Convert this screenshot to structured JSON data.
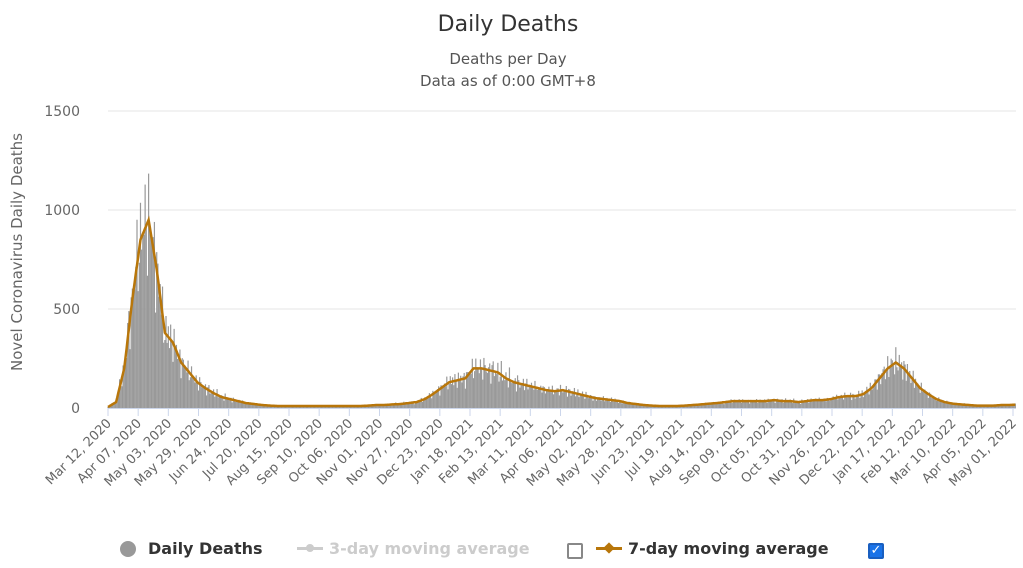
{
  "chart_data": {
    "type": "bar",
    "title": "Daily Deaths",
    "subtitle": "Deaths per Day",
    "subtitle2": "Data as of 0:00 GMT+8",
    "ylabel": "Novel Coronavirus Daily Deaths",
    "xlabel": "",
    "ylim": [
      0,
      1500
    ],
    "yticks": [
      "0",
      "500",
      "1000",
      "1500"
    ],
    "ytick_values": [
      0,
      500,
      1000,
      1500
    ],
    "x_start": "Mar 12, 2020",
    "x_tick_step_days": 26,
    "xticks": [
      "Mar 12, 2020",
      "Apr 07, 2020",
      "May 03, 2020",
      "May 29, 2020",
      "Jun 24, 2020",
      "Jul 20, 2020",
      "Aug 15, 2020",
      "Sep 10, 2020",
      "Oct 06, 2020",
      "Nov 01, 2020",
      "Nov 27, 2020",
      "Dec 23, 2020",
      "Jan 18, 2021",
      "Feb 13, 2021",
      "Mar 11, 2021",
      "Apr 06, 2021",
      "May 02, 2021",
      "May 28, 2021",
      "Jun 23, 2021",
      "Jul 19, 2021",
      "Aug 14, 2021",
      "Sep 09, 2021",
      "Oct 05, 2021",
      "Oct 31, 2021",
      "Nov 26, 2021",
      "Dec 22, 2021",
      "Jan 17, 2022",
      "Feb 12, 2022",
      "Mar 10, 2022",
      "Apr 05, 2022",
      "May 01, 2022"
    ],
    "grid": true,
    "legend_position": "bottom",
    "series_step_days": 7,
    "series": [
      {
        "name": "Daily Deaths",
        "type": "bar",
        "color": "#999999",
        "note": "weekly-sampled approximate values",
        "values": [
          5,
          30,
          200,
          550,
          850,
          950,
          700,
          380,
          330,
          230,
          180,
          130,
          100,
          75,
          55,
          45,
          35,
          25,
          20,
          15,
          12,
          10,
          10,
          10,
          10,
          10,
          10,
          10,
          10,
          10,
          10,
          10,
          12,
          15,
          15,
          18,
          20,
          25,
          30,
          45,
          70,
          100,
          130,
          140,
          150,
          200,
          200,
          190,
          180,
          150,
          130,
          120,
          110,
          100,
          90,
          85,
          90,
          80,
          70,
          60,
          50,
          45,
          40,
          35,
          25,
          20,
          15,
          12,
          10,
          10,
          10,
          12,
          15,
          18,
          22,
          25,
          30,
          35,
          35,
          35,
          35,
          35,
          40,
          35,
          35,
          30,
          35,
          40,
          40,
          45,
          55,
          60,
          60,
          70,
          100,
          150,
          200,
          230,
          200,
          150,
          100,
          70,
          45,
          30,
          22,
          18,
          15,
          12,
          12,
          12,
          15,
          15,
          18
        ]
      },
      {
        "name": "3-day moving average",
        "type": "line",
        "color": "#cccccc",
        "visible": false
      },
      {
        "name": "7-day moving average",
        "type": "line",
        "color": "#b8760a",
        "visible": true
      }
    ]
  },
  "legend": {
    "daily": "Daily Deaths",
    "avg3": "3-day moving average",
    "avg7": "7-day moving average",
    "avg3_checked": false,
    "avg7_checked": true,
    "check_mark": "✓"
  }
}
